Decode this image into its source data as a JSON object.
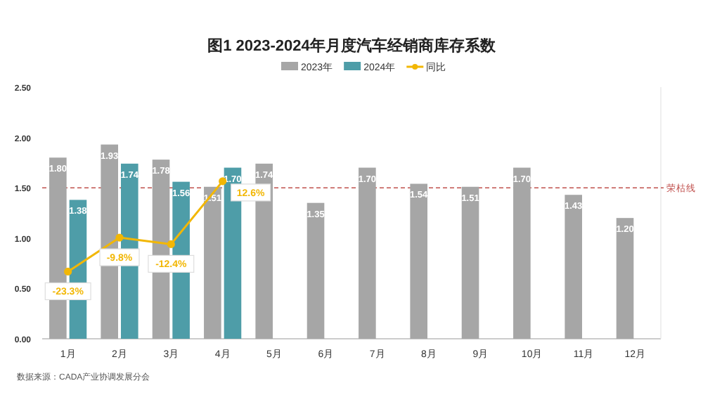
{
  "chart_data": {
    "type": "bar",
    "title": "图1  2023-2024年月度汽车经销商库存系数",
    "categories": [
      "1月",
      "2月",
      "3月",
      "4月",
      "5月",
      "6月",
      "7月",
      "8月",
      "9月",
      "10月",
      "11月",
      "12月"
    ],
    "series": [
      {
        "name": "2023年",
        "color": "#a6a6a6",
        "values": [
          1.8,
          1.93,
          1.78,
          1.51,
          1.74,
          1.35,
          1.7,
          1.54,
          1.51,
          1.7,
          1.43,
          1.2
        ],
        "value_labels": [
          "1.80",
          "1.93",
          "1.78",
          "1.51",
          "1.74",
          "1.35",
          "1.70",
          "1.54",
          "1.51",
          "1.70",
          "1.43",
          "1.20"
        ]
      },
      {
        "name": "2024年",
        "color": "#4e9da8",
        "values": [
          1.38,
          1.74,
          1.56,
          1.7,
          null,
          null,
          null,
          null,
          null,
          null,
          null,
          null
        ],
        "value_labels": [
          "1.38",
          "1.74",
          "1.56",
          "1.70",
          null,
          null,
          null,
          null,
          null,
          null,
          null,
          null
        ]
      },
      {
        "name": "同比",
        "type": "line",
        "axis": "y2",
        "color": "#f2b705",
        "marker": "circle",
        "values": [
          -23.3,
          -9.8,
          -12.4,
          12.6,
          null,
          null,
          null,
          null,
          null,
          null,
          null,
          null
        ],
        "value_labels": [
          "-23.3%",
          "-9.8%",
          "-12.4%",
          "12.6%",
          null,
          null,
          null,
          null,
          null,
          null,
          null,
          null
        ]
      }
    ],
    "ylim": [
      0,
      2.5
    ],
    "yticks": [
      {
        "value": 0,
        "label": "0.00"
      },
      {
        "value": 0.5,
        "label": "0.50"
      },
      {
        "value": 1,
        "label": "1.00"
      },
      {
        "value": 1.5,
        "label": "1.50"
      },
      {
        "value": 2,
        "label": "2.00"
      },
      {
        "value": 2.5,
        "label": "2.50"
      }
    ],
    "y2lim": [
      -50,
      50
    ],
    "tick_labels": "xy",
    "ref_lines": [
      {
        "axis": "y",
        "value": 1.5,
        "label": "荣枯线",
        "color": "#c0504d",
        "line_style": "dashed"
      }
    ],
    "legend": "top",
    "grid": false,
    "annotations": [
      "数据来源：CADA产业协调发展分会"
    ]
  }
}
